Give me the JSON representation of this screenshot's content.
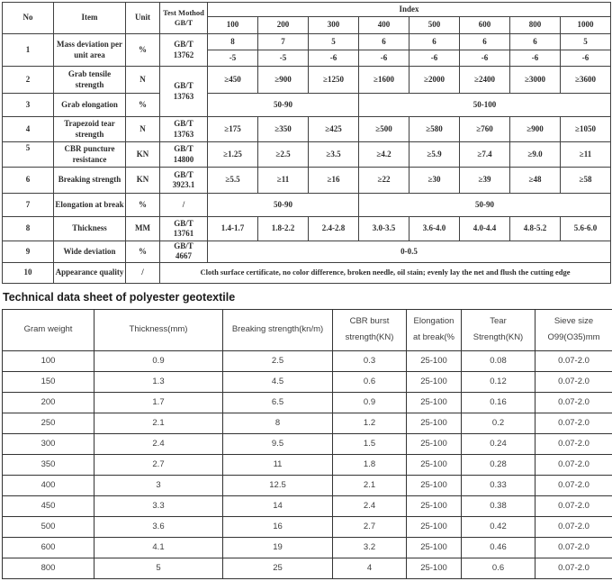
{
  "colors": {
    "table1_border": "#404040",
    "table1_text": "#2b2b2b",
    "table2_border": "#333333",
    "table2_text": "#3d3d3d",
    "background": "#ffffff"
  },
  "table1": {
    "header": {
      "no": "No",
      "item": "Item",
      "unit": "Unit",
      "method": "Test Mothod GB/T",
      "index": "Index",
      "index_cols": [
        "100",
        "200",
        "300",
        "400",
        "500",
        "600",
        "800",
        "1000"
      ]
    },
    "rows": {
      "r1": {
        "no": "1",
        "item": "Mass deviation per unit area",
        "unit": "%",
        "method": "GB/T 13762",
        "top": [
          "8",
          "7",
          "5",
          "6",
          "6",
          "6",
          "6",
          "5"
        ],
        "bottom": [
          "-5",
          "-5",
          "-6",
          "-6",
          "-6",
          "-6",
          "-6",
          "-6"
        ]
      },
      "r2": {
        "no": "2",
        "item": "Grab tensile strength",
        "unit": "N",
        "method": "GB/T 13763",
        "cells": [
          "≥450",
          "≥900",
          "≥1250",
          "≥1600",
          "≥2000",
          "≥2400",
          "≥3000",
          "≥3600"
        ]
      },
      "r3": {
        "no": "3",
        "item": "Grab elongation",
        "unit": "%",
        "left": "50-90",
        "right": "50-100"
      },
      "r4": {
        "no": "4",
        "item": "Trapezoid tear strength",
        "unit": "N",
        "method": "GB/T 13763",
        "cells": [
          "≥175",
          "≥350",
          "≥425",
          "≥500",
          "≥580",
          "≥760",
          "≥900",
          "≥1050"
        ]
      },
      "r5": {
        "no": "5",
        "item": "CBR puncture resistance",
        "unit": "KN",
        "method": "GB/T 14800",
        "cells": [
          "≥1.25",
          "≥2.5",
          "≥3.5",
          "≥4.2",
          "≥5.9",
          "≥7.4",
          "≥9.0",
          "≥11"
        ]
      },
      "r6": {
        "no": "6",
        "item": "Breaking strength",
        "unit": "KN",
        "method": "GB/T 3923.1",
        "cells": [
          "≥5.5",
          "≥11",
          "≥16",
          "≥22",
          "≥30",
          "≥39",
          "≥48",
          "≥58"
        ]
      },
      "r7": {
        "no": "7",
        "item": "Elongation at break",
        "unit": "%",
        "method": "/",
        "left": "50-90",
        "right": "50-90"
      },
      "r8": {
        "no": "8",
        "item": "Thickness",
        "unit": "MM",
        "method": "GB/T 13761",
        "cells": [
          "1.4-1.7",
          "1.8-2.2",
          "2.4-2.8",
          "3.0-3.5",
          "3.6-4.0",
          "4.0-4.4",
          "4.8-5.2",
          "5.6-6.0"
        ]
      },
      "r9": {
        "no": "9",
        "item": "Wide deviation",
        "unit": "%",
        "method": "GB/T 4667",
        "span": "0-0.5"
      },
      "r10": {
        "no": "10",
        "item": "Appearance quality",
        "unit": "/",
        "span": "Cloth surface certificate, no color difference, broken needle, oil stain; evenly lay the net and flush the cutting edge"
      }
    }
  },
  "table2": {
    "title": "Technical data sheet of polyester geotextile",
    "headers": [
      "Gram weight",
      "Thickness(mm)",
      "Breaking strength(kn/m)",
      "CBR burst strength(KN)",
      "Elongation at break(%",
      "Tear Strength(KN)",
      "Sieve size O99(O35)mm"
    ],
    "rows": [
      [
        "100",
        "0.9",
        "2.5",
        "0.3",
        "25-100",
        "0.08",
        "0.07-2.0"
      ],
      [
        "150",
        "1.3",
        "4.5",
        "0.6",
        "25-100",
        "0.12",
        "0.07-2.0"
      ],
      [
        "200",
        "1.7",
        "6.5",
        "0.9",
        "25-100",
        "0.16",
        "0.07-2.0"
      ],
      [
        "250",
        "2.1",
        "8",
        "1.2",
        "25-100",
        "0.2",
        "0.07-2.0"
      ],
      [
        "300",
        "2.4",
        "9.5",
        "1.5",
        "25-100",
        "0.24",
        "0.07-2.0"
      ],
      [
        "350",
        "2.7",
        "11",
        "1.8",
        "25-100",
        "0.28",
        "0.07-2.0"
      ],
      [
        "400",
        "3",
        "12.5",
        "2.1",
        "25-100",
        "0.33",
        "0.07-2.0"
      ],
      [
        "450",
        "3.3",
        "14",
        "2.4",
        "25-100",
        "0.38",
        "0.07-2.0"
      ],
      [
        "500",
        "3.6",
        "16",
        "2.7",
        "25-100",
        "0.42",
        "0.07-2.0"
      ],
      [
        "600",
        "4.1",
        "19",
        "3.2",
        "25-100",
        "0.46",
        "0.07-2.0"
      ],
      [
        "800",
        "5",
        "25",
        "4",
        "25-100",
        "0.6",
        "0.07-2.0"
      ]
    ]
  }
}
